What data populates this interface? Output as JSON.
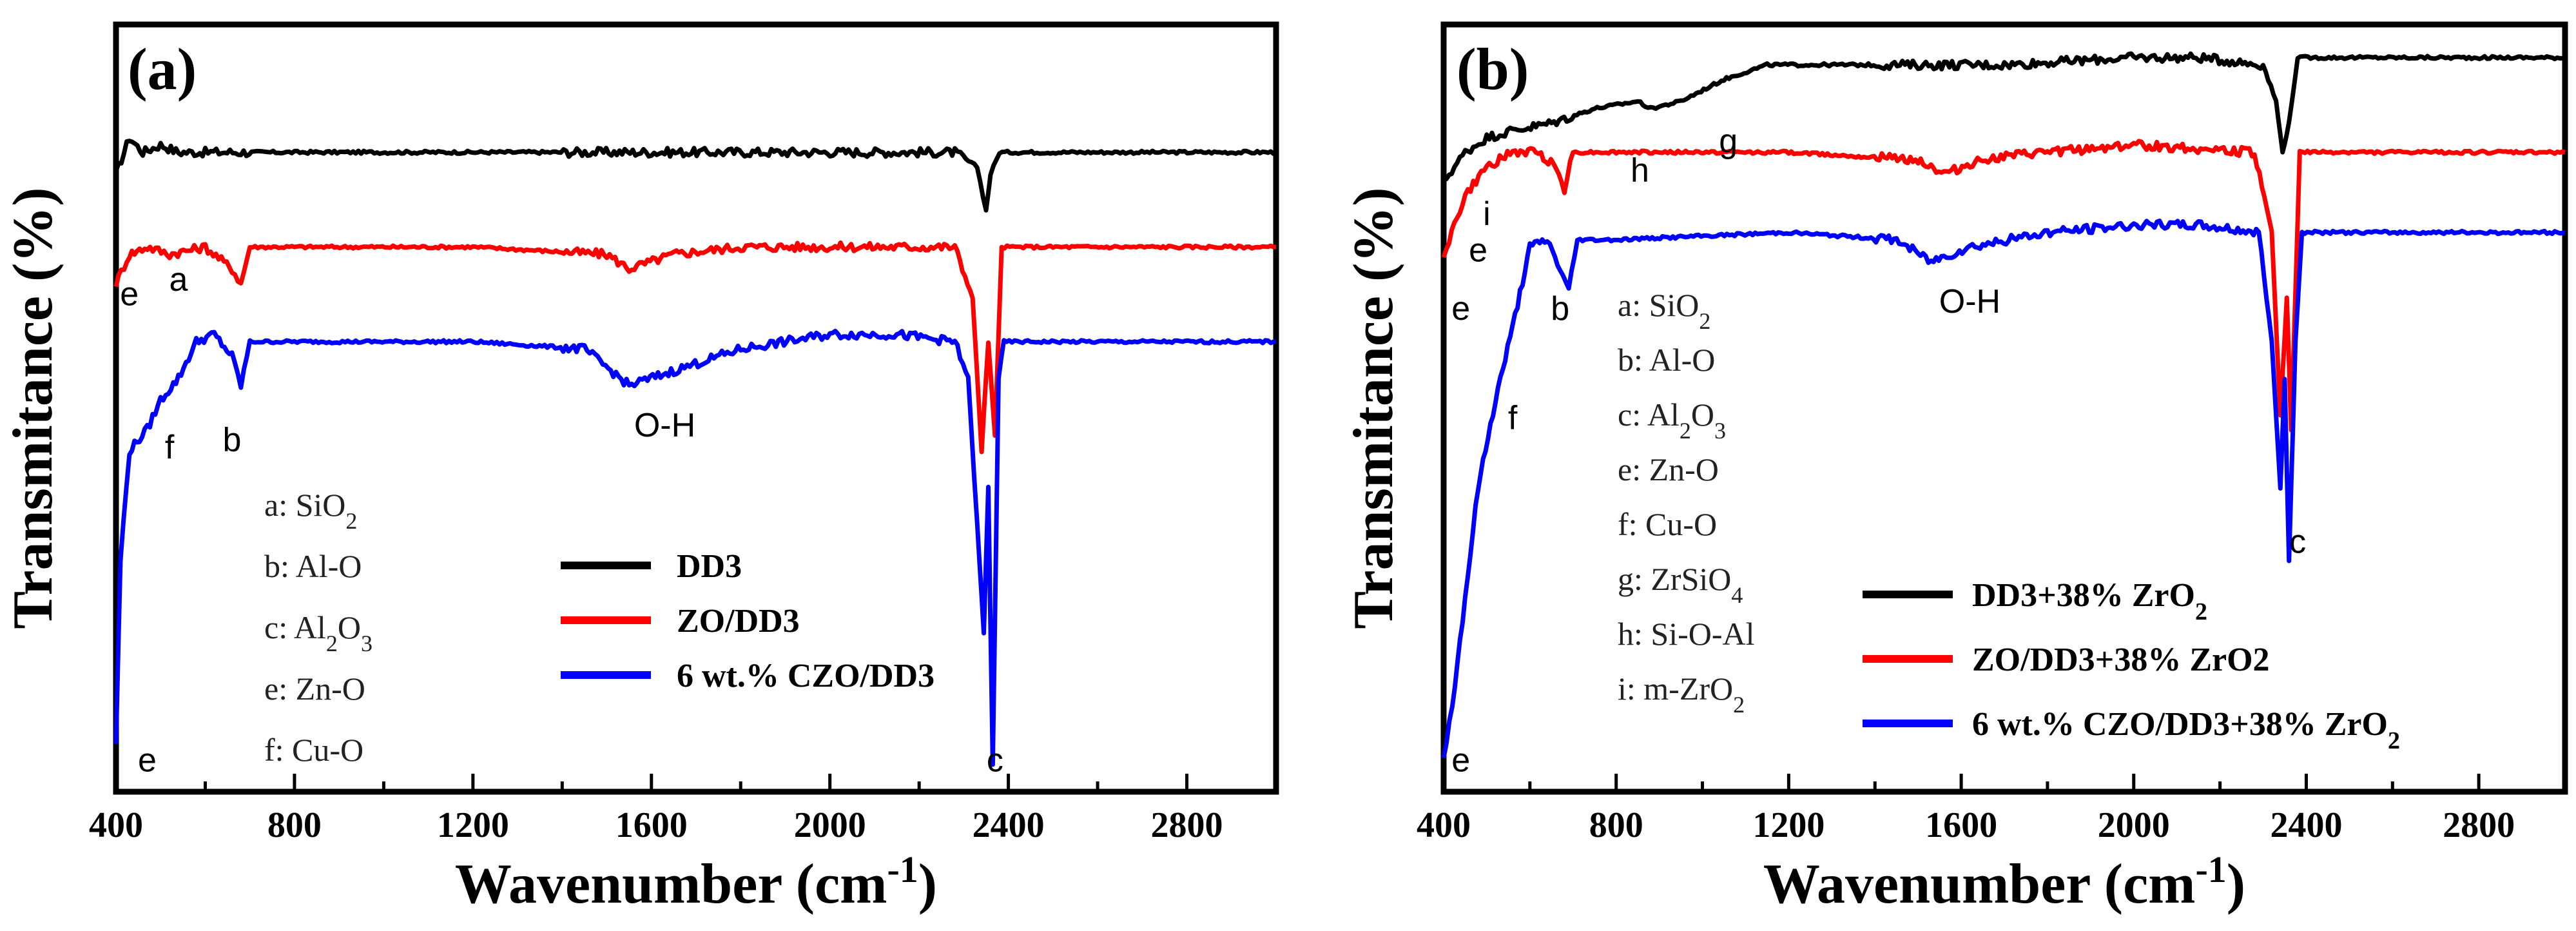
{
  "chart_data": [
    {
      "type": "line",
      "panel_label": "(a)",
      "xlabel": "Wavenumber (cm",
      "xlabel_sup": "-1",
      "xlabel_close": ")",
      "ylabel": "Transmitance (%)",
      "xlim": [
        400,
        3000
      ],
      "xticks": [
        "400",
        "800",
        "1200",
        "1600",
        "2000",
        "2400",
        "2800"
      ],
      "legend_position": "bottom-center",
      "series": [
        {
          "name": "DD3",
          "color": "#000000",
          "baseline": 0.86,
          "points": [
            [
              400,
              0.83
            ],
            [
              430,
              0.88
            ],
            [
              460,
              0.86
            ],
            [
              500,
              0.87
            ],
            [
              540,
              0.86
            ],
            [
              600,
              0.86
            ],
            [
              680,
              0.86
            ],
            [
              800,
              0.86
            ],
            [
              1200,
              0.86
            ],
            [
              1600,
              0.86
            ],
            [
              2000,
              0.86
            ],
            [
              2280,
              0.86
            ],
            [
              2330,
              0.84
            ],
            [
              2350,
              0.78
            ],
            [
              2360,
              0.83
            ],
            [
              2380,
              0.86
            ],
            [
              2500,
              0.86
            ],
            [
              3000,
              0.86
            ]
          ]
        },
        {
          "name": "ZO/DD3",
          "color": "#ff0000",
          "baseline": 0.73,
          "points": [
            [
              400,
              0.68
            ],
            [
              430,
              0.72
            ],
            [
              470,
              0.73
            ],
            [
              520,
              0.72
            ],
            [
              600,
              0.73
            ],
            [
              660,
              0.7
            ],
            [
              680,
              0.68
            ],
            [
              700,
              0.73
            ],
            [
              800,
              0.73
            ],
            [
              1200,
              0.73
            ],
            [
              1500,
              0.72
            ],
            [
              1550,
              0.7
            ],
            [
              1650,
              0.72
            ],
            [
              1800,
              0.73
            ],
            [
              2000,
              0.73
            ],
            [
              2280,
              0.73
            ],
            [
              2320,
              0.66
            ],
            [
              2340,
              0.45
            ],
            [
              2355,
              0.6
            ],
            [
              2370,
              0.47
            ],
            [
              2385,
              0.73
            ],
            [
              2500,
              0.73
            ],
            [
              3000,
              0.73
            ]
          ]
        },
        {
          "name": "6 wt.% CZO/DD3",
          "color": "#0000ff",
          "baseline": 0.6,
          "points": [
            [
              400,
              0.05
            ],
            [
              410,
              0.3
            ],
            [
              430,
              0.45
            ],
            [
              470,
              0.48
            ],
            [
              500,
              0.52
            ],
            [
              540,
              0.55
            ],
            [
              580,
              0.6
            ],
            [
              620,
              0.61
            ],
            [
              660,
              0.58
            ],
            [
              680,
              0.54
            ],
            [
              700,
              0.6
            ],
            [
              800,
              0.6
            ],
            [
              1200,
              0.6
            ],
            [
              1450,
              0.59
            ],
            [
              1550,
              0.54
            ],
            [
              1650,
              0.56
            ],
            [
              1800,
              0.59
            ],
            [
              2000,
              0.61
            ],
            [
              2150,
              0.61
            ],
            [
              2280,
              0.6
            ],
            [
              2310,
              0.55
            ],
            [
              2330,
              0.35
            ],
            [
              2345,
              0.2
            ],
            [
              2355,
              0.4
            ],
            [
              2365,
              0.02
            ],
            [
              2378,
              0.55
            ],
            [
              2390,
              0.6
            ],
            [
              3000,
              0.6
            ]
          ]
        }
      ],
      "annotations": [
        {
          "text": "a",
          "x": 540,
          "y": 0.67
        },
        {
          "text": "e",
          "x": 430,
          "y": 0.65
        },
        {
          "text": "f",
          "x": 520,
          "y": 0.44
        },
        {
          "text": "b",
          "x": 660,
          "y": 0.45
        },
        {
          "text": "O-H",
          "x": 1630,
          "y": 0.47
        },
        {
          "text": "e",
          "x": 470,
          "y": 0.01
        },
        {
          "text": "c",
          "x": 2370,
          "y": 0.01
        }
      ],
      "assignments": [
        "a: SiO",
        "b: Al-O",
        "c: Al",
        "e: Zn-O",
        "f: Cu-O"
      ]
    },
    {
      "type": "line",
      "panel_label": "(b)",
      "xlabel": "Wavenumber (cm",
      "xlabel_sup": "-1",
      "xlabel_close": ")",
      "ylabel": "Transmitance (%)",
      "xlim": [
        400,
        3000
      ],
      "xticks": [
        "400",
        "800",
        "1200",
        "1600",
        "2000",
        "2400",
        "2800"
      ],
      "legend_position": "bottom-right",
      "series": [
        {
          "name": "DD3+38% ZrO",
          "name_sub": "2",
          "color": "#000000",
          "points": [
            [
              400,
              0.82
            ],
            [
              450,
              0.86
            ],
            [
              500,
              0.88
            ],
            [
              560,
              0.89
            ],
            [
              650,
              0.9
            ],
            [
              750,
              0.92
            ],
            [
              850,
              0.93
            ],
            [
              880,
              0.92
            ],
            [
              950,
              0.93
            ],
            [
              1050,
              0.96
            ],
            [
              1150,
              0.98
            ],
            [
              1300,
              0.98
            ],
            [
              1500,
              0.98
            ],
            [
              1700,
              0.98
            ],
            [
              2000,
              0.99
            ],
            [
              2150,
              0.99
            ],
            [
              2300,
              0.98
            ],
            [
              2330,
              0.93
            ],
            [
              2345,
              0.86
            ],
            [
              2360,
              0.9
            ],
            [
              2380,
              0.99
            ],
            [
              3000,
              0.99
            ]
          ]
        },
        {
          "name": "ZO/DD3+38% ZrO2",
          "color": "#ff0000",
          "points": [
            [
              400,
              0.72
            ],
            [
              450,
              0.8
            ],
            [
              500,
              0.84
            ],
            [
              560,
              0.86
            ],
            [
              620,
              0.86
            ],
            [
              660,
              0.84
            ],
            [
              680,
              0.81
            ],
            [
              700,
              0.86
            ],
            [
              800,
              0.86
            ],
            [
              1200,
              0.86
            ],
            [
              1500,
              0.85
            ],
            [
              1560,
              0.83
            ],
            [
              1650,
              0.85
            ],
            [
              1800,
              0.86
            ],
            [
              2000,
              0.87
            ],
            [
              2280,
              0.86
            ],
            [
              2320,
              0.75
            ],
            [
              2340,
              0.5
            ],
            [
              2355,
              0.66
            ],
            [
              2365,
              0.48
            ],
            [
              2385,
              0.86
            ],
            [
              3000,
              0.86
            ]
          ]
        },
        {
          "name": "6 wt.% CZO/DD3+38% ZrO",
          "name_sub": "2",
          "color": "#0000ff",
          "points": [
            [
              400,
              0.03
            ],
            [
              420,
              0.1
            ],
            [
              450,
              0.25
            ],
            [
              480,
              0.4
            ],
            [
              520,
              0.52
            ],
            [
              560,
              0.62
            ],
            [
              600,
              0.73
            ],
            [
              640,
              0.74
            ],
            [
              670,
              0.7
            ],
            [
              690,
              0.67
            ],
            [
              710,
              0.74
            ],
            [
              800,
              0.74
            ],
            [
              1200,
              0.75
            ],
            [
              1450,
              0.74
            ],
            [
              1530,
              0.71
            ],
            [
              1620,
              0.73
            ],
            [
              1800,
              0.75
            ],
            [
              2000,
              0.76
            ],
            [
              2150,
              0.76
            ],
            [
              2290,
              0.75
            ],
            [
              2320,
              0.6
            ],
            [
              2340,
              0.4
            ],
            [
              2350,
              0.55
            ],
            [
              2360,
              0.3
            ],
            [
              2375,
              0.6
            ],
            [
              2390,
              0.75
            ],
            [
              3000,
              0.75
            ]
          ]
        }
      ],
      "annotations": [
        {
          "text": "h",
          "x": 855,
          "y": 0.82
        },
        {
          "text": "g",
          "x": 1060,
          "y": 0.86
        },
        {
          "text": "i",
          "x": 500,
          "y": 0.76
        },
        {
          "text": "e",
          "x": 480,
          "y": 0.71
        },
        {
          "text": "e",
          "x": 440,
          "y": 0.63
        },
        {
          "text": "b",
          "x": 670,
          "y": 0.63
        },
        {
          "text": "O-H",
          "x": 1620,
          "y": 0.64
        },
        {
          "text": "f",
          "x": 560,
          "y": 0.48
        },
        {
          "text": "c",
          "x": 2380,
          "y": 0.31
        },
        {
          "text": "e",
          "x": 440,
          "y": 0.01
        }
      ],
      "assignments": [
        "a: SiO",
        "b: Al-O",
        "c: Al",
        "e: Zn-O",
        "f: Cu-O",
        "g: ZrSiO",
        "h: Si-O-Al",
        "i: m-ZrO"
      ]
    }
  ]
}
